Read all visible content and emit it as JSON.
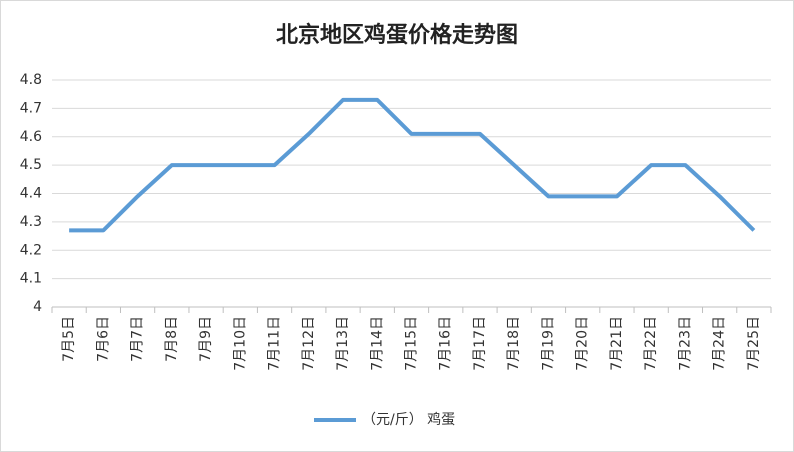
{
  "chart_data": {
    "type": "line",
    "title": "北京地区鸡蛋价格走势图",
    "categories": [
      "7月5日",
      "7月6日",
      "7月7日",
      "7月8日",
      "7月9日",
      "7月10日",
      "7月11日",
      "7月12日",
      "7月13日",
      "7月14日",
      "7月15日",
      "7月16日",
      "7月17日",
      "7月18日",
      "7月19日",
      "7月20日",
      "7月21日",
      "7月22日",
      "7月23日",
      "7月24日",
      "7月25日"
    ],
    "series": [
      {
        "name": "（元/斤） 鸡蛋",
        "color": "#5b9bd5",
        "values": [
          4.27,
          4.27,
          4.39,
          4.5,
          4.5,
          4.5,
          4.5,
          4.61,
          4.73,
          4.73,
          4.61,
          4.61,
          4.61,
          4.5,
          4.39,
          4.39,
          4.39,
          4.5,
          4.5,
          4.39,
          4.27
        ]
      }
    ],
    "ylim": [
      4,
      4.8
    ],
    "yticks": [
      4,
      4.1,
      4.2,
      4.3,
      4.4,
      4.5,
      4.6,
      4.7,
      4.8
    ],
    "grid": true,
    "legend": "bottom"
  }
}
